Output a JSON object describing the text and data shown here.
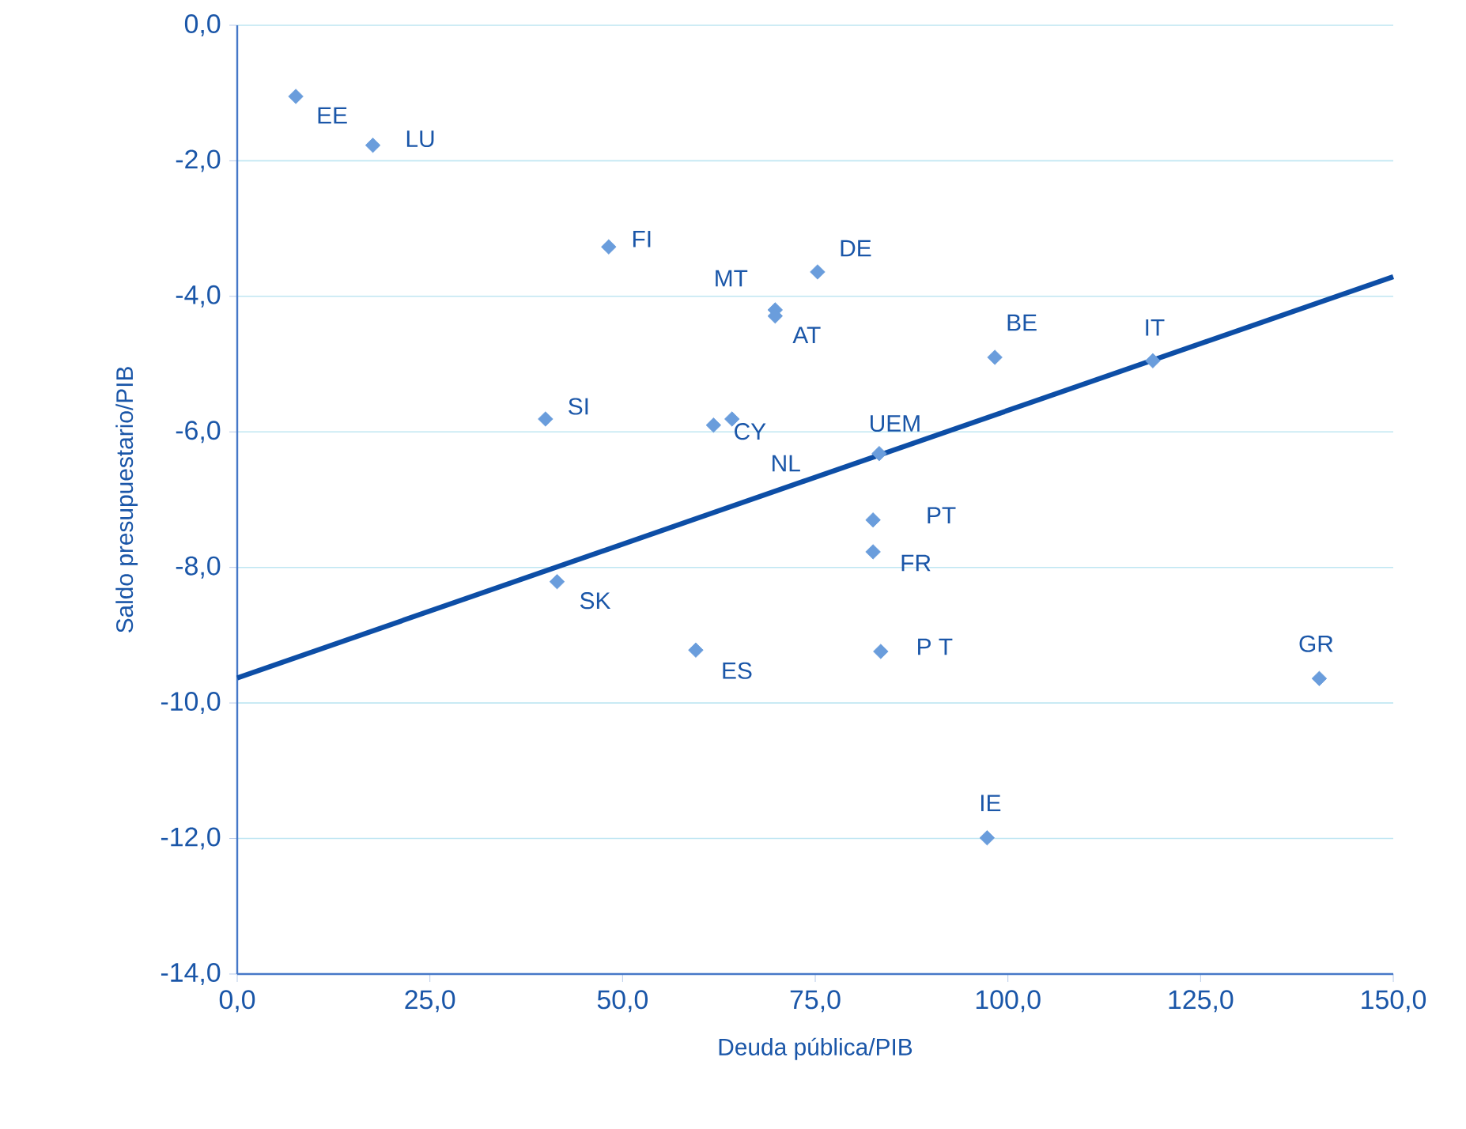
{
  "chart_data": {
    "type": "scatter",
    "xlabel": "Deuda pública/PIB",
    "ylabel": "Saldo presupuestario/PIB",
    "xlim": [
      0,
      150
    ],
    "ylim": [
      -14,
      0
    ],
    "xticks": [
      {
        "value": 0,
        "label": "0,0"
      },
      {
        "value": 25,
        "label": "25,0"
      },
      {
        "value": 50,
        "label": "50,0"
      },
      {
        "value": 75,
        "label": "75,0"
      },
      {
        "value": 100,
        "label": "100,0"
      },
      {
        "value": 125,
        "label": "125,0"
      },
      {
        "value": 150,
        "label": "150,0"
      }
    ],
    "yticks": [
      {
        "value": -14,
        "label": "-14,0"
      },
      {
        "value": -12,
        "label": "-12,0"
      },
      {
        "value": -10,
        "label": "-10,0"
      },
      {
        "value": -8,
        "label": "-8,0"
      },
      {
        "value": -6,
        "label": "-6,0"
      },
      {
        "value": -4,
        "label": "-4,0"
      },
      {
        "value": -2,
        "label": "-2,0"
      },
      {
        "value": 0,
        "label": "0,0"
      }
    ],
    "grid": "y",
    "series": [
      {
        "type": "scatter",
        "marker": "diamond",
        "color": "#6a9ddc",
        "x": [
          7.6,
          17.6,
          48.2,
          75.3,
          69.8,
          69.8,
          98.3,
          118.8,
          40.0,
          61.8,
          64.2,
          83.3,
          82.5,
          82.5,
          41.5,
          59.5,
          83.5,
          140.4,
          97.3
        ],
        "values": [
          -1.05,
          -1.77,
          -3.27,
          -3.64,
          -4.2,
          -4.29,
          -4.9,
          -4.95,
          -5.81,
          -5.9,
          -5.81,
          -6.32,
          -7.3,
          -7.77,
          -8.21,
          -9.22,
          -9.24,
          -9.64,
          -11.99
        ]
      },
      {
        "type": "line",
        "color": "#0d4ea6",
        "line_style": "solid",
        "x": [
          0,
          150
        ],
        "values": [
          -9.63,
          -3.71
        ]
      }
    ],
    "annotations": [
      {
        "text": "EE",
        "x": 7.6,
        "y": -1.05
      },
      {
        "text": "LU",
        "x": 17.6,
        "y": -1.77
      },
      {
        "text": "FI",
        "x": 48.2,
        "y": -3.27
      },
      {
        "text": "DE",
        "x": 75.3,
        "y": -3.64
      },
      {
        "text": "MT",
        "x": 69.8,
        "y": -4.2
      },
      {
        "text": "AT",
        "x": 69.8,
        "y": -4.29
      },
      {
        "text": "BE",
        "x": 98.3,
        "y": -4.9
      },
      {
        "text": "IT",
        "x": 118.8,
        "y": -4.95
      },
      {
        "text": "SI",
        "x": 40.0,
        "y": -5.81
      },
      {
        "text": "CY",
        "x": 61.8,
        "y": -5.9
      },
      {
        "text": "NL",
        "x": 64.2,
        "y": -5.81
      },
      {
        "text": "UEM",
        "x": 83.3,
        "y": -6.32
      },
      {
        "text": "PT",
        "x": 82.5,
        "y": -7.3
      },
      {
        "text": "FR",
        "x": 82.5,
        "y": -7.77
      },
      {
        "text": "SK",
        "x": 41.5,
        "y": -8.21
      },
      {
        "text": "ES",
        "x": 59.5,
        "y": -9.22
      },
      {
        "text": "P T",
        "x": 83.5,
        "y": -9.24
      },
      {
        "text": "GR",
        "x": 140.4,
        "y": -9.64
      },
      {
        "text": "IE",
        "x": 97.3,
        "y": -11.99
      }
    ]
  }
}
